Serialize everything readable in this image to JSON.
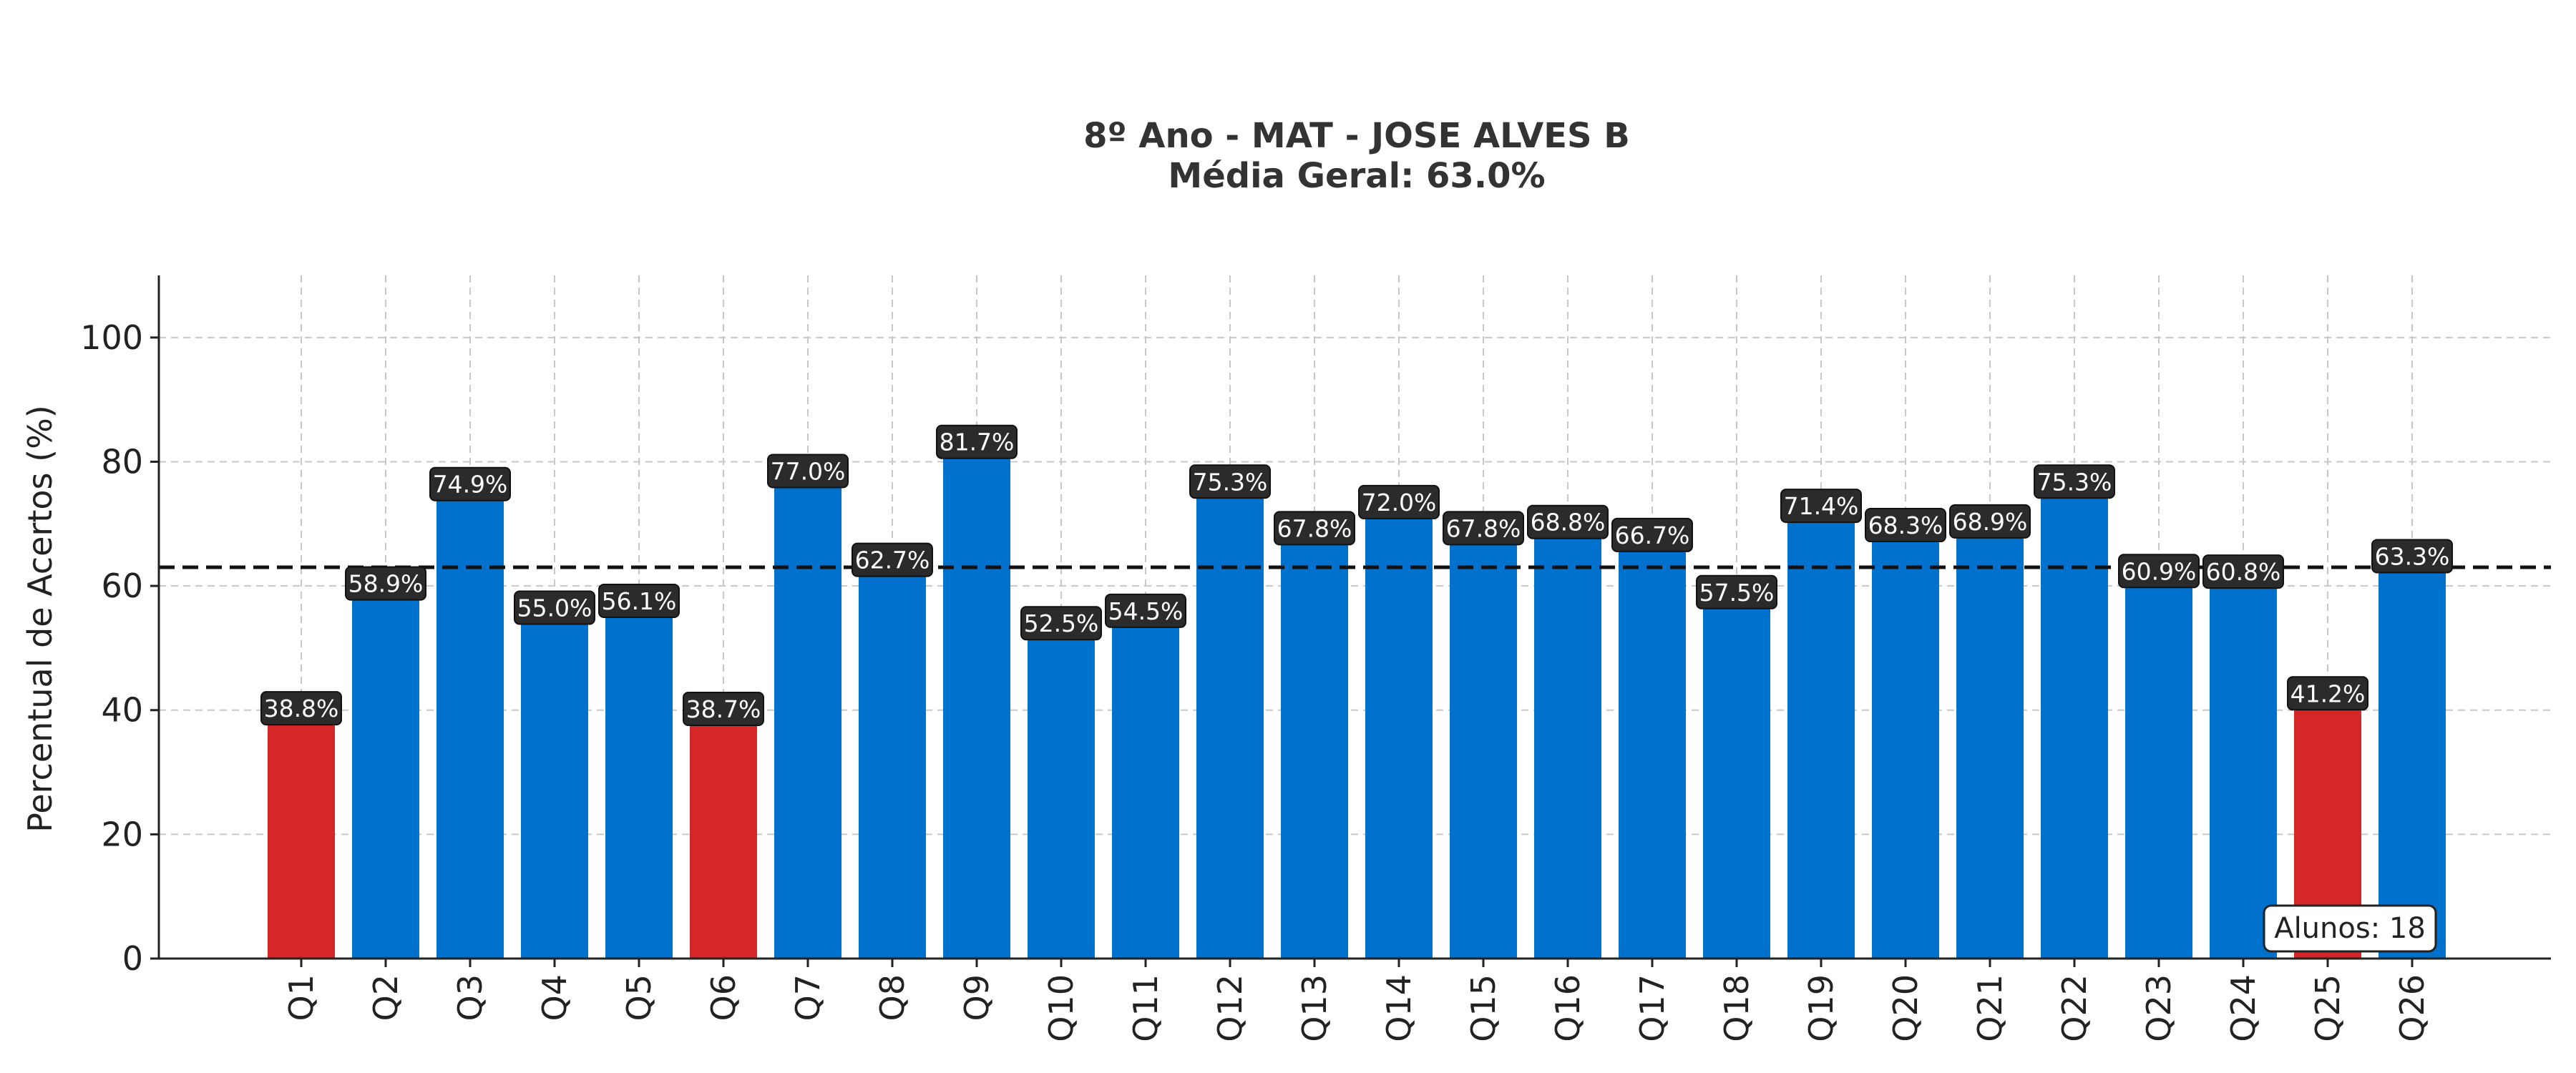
{
  "colors": {
    "bar_default": "#0072ce",
    "bar_low": "#d62728",
    "label_bg": "#2b2b2b",
    "label_text": "#ffffff",
    "grid": "#c8c8c8",
    "mean_line": "#111111"
  },
  "chart_data": {
    "type": "bar",
    "title": "8º Ano - MAT - JOSE ALVES B",
    "subtitle": "Média Geral: 63.0%",
    "xlabel": "",
    "ylabel": "Percentual de Acertos (%)",
    "ylim": [
      0,
      110
    ],
    "yticks": [
      "0",
      "20",
      "40",
      "60",
      "80",
      "100"
    ],
    "grid": true,
    "mean_line": 63.0,
    "categories": [
      "Q1",
      "Q2",
      "Q3",
      "Q4",
      "Q5",
      "Q6",
      "Q7",
      "Q8",
      "Q9",
      "Q10",
      "Q11",
      "Q12",
      "Q13",
      "Q14",
      "Q15",
      "Q16",
      "Q17",
      "Q18",
      "Q19",
      "Q20",
      "Q21",
      "Q22",
      "Q23",
      "Q24",
      "Q25",
      "Q26"
    ],
    "values": [
      38.8,
      58.9,
      74.9,
      55.0,
      56.1,
      38.7,
      77.0,
      62.7,
      81.7,
      52.5,
      54.5,
      75.3,
      67.8,
      72.0,
      67.8,
      68.8,
      66.7,
      57.5,
      71.4,
      68.3,
      68.9,
      75.3,
      60.9,
      60.8,
      41.2,
      63.3
    ],
    "labels": [
      "38.8%",
      "58.9%",
      "74.9%",
      "55.0%",
      "56.1%",
      "38.7%",
      "77.0%",
      "62.7%",
      "81.7%",
      "52.5%",
      "54.5%",
      "75.3%",
      "67.8%",
      "72.0%",
      "67.8%",
      "68.8%",
      "66.7%",
      "57.5%",
      "71.4%",
      "68.3%",
      "68.9%",
      "75.3%",
      "60.9%",
      "60.8%",
      "41.2%",
      "63.3%"
    ],
    "highlight": [
      "low",
      "normal",
      "normal",
      "normal",
      "normal",
      "low",
      "normal",
      "normal",
      "normal",
      "normal",
      "normal",
      "normal",
      "normal",
      "normal",
      "normal",
      "normal",
      "normal",
      "normal",
      "normal",
      "normal",
      "normal",
      "normal",
      "normal",
      "normal",
      "low",
      "normal"
    ],
    "annotation": "Alunos: 18"
  }
}
